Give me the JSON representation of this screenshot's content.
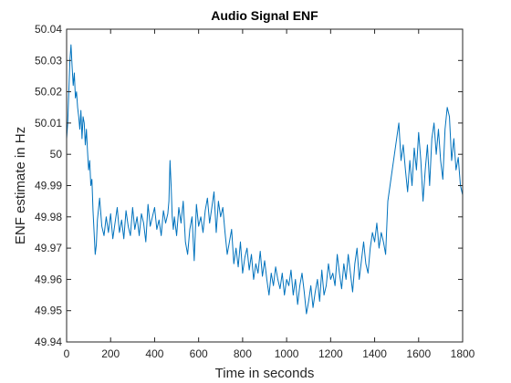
{
  "chart_data": {
    "type": "line",
    "title": "Audio Signal ENF",
    "xlabel": "Time in seconds",
    "ylabel": "ENF estimate in Hz",
    "xlim": [
      0,
      1800
    ],
    "ylim": [
      49.94,
      50.04
    ],
    "xticks": [
      0,
      200,
      400,
      600,
      800,
      1000,
      1200,
      1400,
      1600,
      1800
    ],
    "yticks": [
      49.94,
      49.95,
      49.96,
      49.97,
      49.98,
      49.99,
      50,
      50.01,
      50.02,
      50.03,
      50.04
    ],
    "xtick_labels": [
      "0",
      "200",
      "400",
      "600",
      "800",
      "1000",
      "1200",
      "1400",
      "1600",
      "1800"
    ],
    "ytick_labels": [
      "49.94",
      "49.95",
      "49.96",
      "49.97",
      "49.98",
      "49.99",
      "50",
      "50.01",
      "50.02",
      "50.03",
      "50.04"
    ],
    "grid": false,
    "box": true,
    "line_color": "#0072BD",
    "series": [
      {
        "x": [
          0,
          5,
          10,
          15,
          20,
          25,
          30,
          35,
          40,
          45,
          50,
          55,
          60,
          65,
          70,
          75,
          80,
          85,
          90,
          95,
          100,
          105,
          110,
          115,
          120,
          125,
          130,
          135,
          140,
          150,
          160,
          170,
          180,
          190,
          200,
          210,
          220,
          230,
          240,
          250,
          260,
          270,
          280,
          290,
          300,
          310,
          320,
          330,
          340,
          350,
          360,
          370,
          380,
          390,
          400,
          410,
          420,
          430,
          440,
          450,
          460,
          465,
          470,
          475,
          480,
          485,
          490,
          500,
          510,
          520,
          530,
          540,
          550,
          560,
          570,
          580,
          590,
          600,
          610,
          620,
          630,
          640,
          650,
          660,
          670,
          680,
          690,
          700,
          710,
          720,
          730,
          740,
          750,
          760,
          770,
          780,
          790,
          800,
          810,
          820,
          830,
          840,
          850,
          860,
          870,
          880,
          890,
          900,
          910,
          920,
          930,
          940,
          950,
          960,
          970,
          980,
          990,
          1000,
          1010,
          1020,
          1030,
          1040,
          1050,
          1060,
          1070,
          1080,
          1090,
          1100,
          1110,
          1120,
          1130,
          1140,
          1150,
          1160,
          1170,
          1180,
          1190,
          1200,
          1210,
          1220,
          1230,
          1240,
          1250,
          1260,
          1270,
          1280,
          1290,
          1300,
          1310,
          1320,
          1330,
          1340,
          1350,
          1360,
          1370,
          1380,
          1390,
          1400,
          1410,
          1420,
          1430,
          1440,
          1450,
          1460,
          1470,
          1480,
          1490,
          1500,
          1510,
          1520,
          1530,
          1540,
          1550,
          1560,
          1570,
          1580,
          1590,
          1600,
          1610,
          1620,
          1630,
          1640,
          1650,
          1660,
          1670,
          1680,
          1690,
          1700,
          1710,
          1720,
          1730,
          1740,
          1750,
          1760,
          1770,
          1780,
          1790,
          1800
        ],
        "y": [
          50.005,
          50.01,
          50.02,
          50.03,
          50.035,
          50.028,
          50.022,
          50.026,
          50.018,
          50.02,
          50.015,
          50.012,
          50.008,
          50.014,
          50.005,
          50.012,
          50.01,
          50.003,
          50.008,
          50.001,
          49.995,
          49.998,
          49.99,
          49.992,
          49.982,
          49.975,
          49.968,
          49.971,
          49.979,
          49.986,
          49.977,
          49.974,
          49.98,
          49.975,
          49.981,
          49.973,
          49.978,
          49.983,
          49.975,
          49.979,
          49.973,
          49.982,
          49.977,
          49.974,
          49.983,
          49.976,
          49.98,
          49.974,
          49.981,
          49.978,
          49.972,
          49.984,
          49.977,
          49.98,
          49.983,
          49.976,
          49.979,
          49.974,
          49.982,
          49.978,
          49.981,
          49.985,
          49.998,
          49.99,
          49.98,
          49.976,
          49.98,
          49.974,
          49.983,
          49.978,
          49.985,
          49.972,
          49.968,
          49.976,
          49.98,
          49.966,
          49.984,
          49.977,
          49.98,
          49.975,
          49.982,
          49.986,
          49.978,
          49.983,
          49.988,
          49.975,
          49.985,
          49.98,
          49.983,
          49.975,
          49.968,
          49.972,
          49.976,
          49.965,
          49.97,
          49.964,
          49.972,
          49.962,
          49.967,
          49.97,
          49.963,
          49.968,
          49.96,
          49.965,
          49.962,
          49.969,
          49.961,
          49.966,
          49.96,
          49.955,
          49.962,
          49.958,
          49.964,
          49.96,
          49.957,
          49.962,
          49.955,
          49.96,
          49.958,
          49.963,
          49.955,
          49.96,
          49.952,
          49.958,
          49.962,
          49.956,
          49.949,
          49.953,
          49.958,
          49.951,
          49.956,
          49.96,
          49.953,
          49.963,
          49.955,
          49.958,
          49.965,
          49.96,
          49.962,
          49.958,
          49.968,
          49.962,
          49.957,
          49.965,
          49.96,
          49.968,
          49.962,
          49.956,
          49.965,
          49.97,
          49.96,
          49.966,
          49.972,
          49.965,
          49.962,
          49.97,
          49.975,
          49.972,
          49.978,
          49.97,
          49.975,
          49.972,
          49.968,
          49.985,
          49.99,
          49.995,
          50.0,
          50.005,
          50.01,
          49.998,
          50.003,
          49.995,
          49.988,
          49.998,
          49.99,
          50.002,
          49.995,
          50.007,
          49.998,
          49.985,
          49.995,
          50.003,
          49.99,
          50.005,
          50.01,
          50.0,
          50.008,
          49.998,
          49.992,
          50.008,
          50.015,
          50.012,
          49.998,
          50.005,
          49.995,
          49.999,
          49.99,
          49.987
        ]
      }
    ]
  }
}
